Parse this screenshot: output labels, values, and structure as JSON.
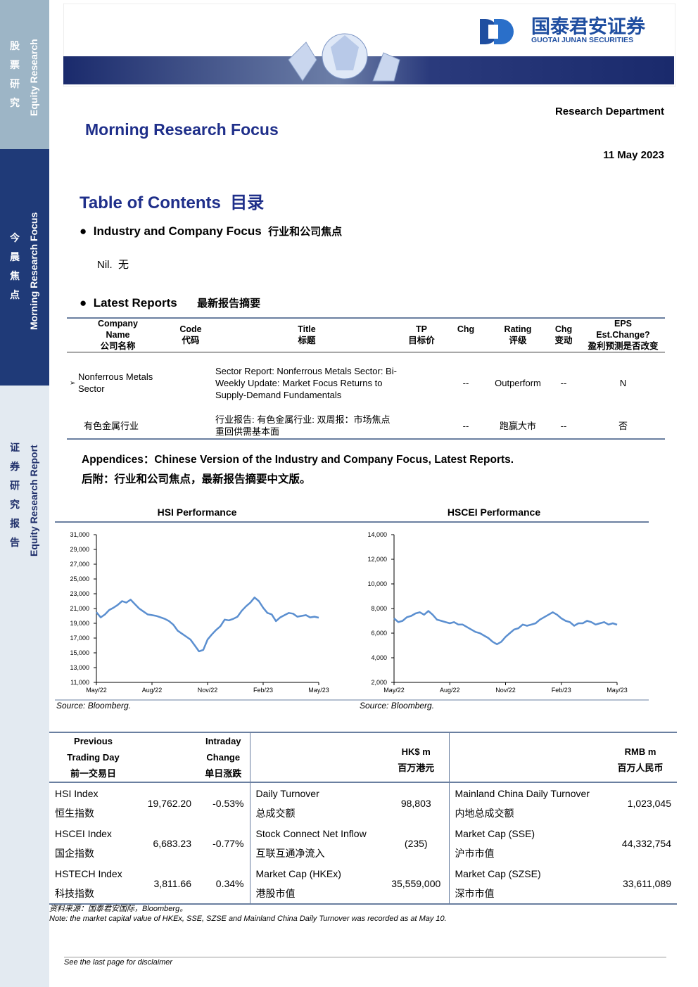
{
  "sidebar": {
    "top_cn": "股票研究",
    "top_en": "Equity Research",
    "mid_cn": "今晨焦点",
    "mid_en": "Morning Research Focus",
    "bot_cn": "证券研究报告",
    "bot_en": "Equity Research Report"
  },
  "header": {
    "logo_cn": "国泰君安证券",
    "logo_en": "GUOTAI JUNAN SECURITIES",
    "department": "Research Department",
    "title": "Morning Research Focus",
    "date": "11 May 2023"
  },
  "toc": {
    "title": "Table of Contents",
    "title_cn": "目录",
    "section1": {
      "title": "Industry and Company Focus",
      "title_cn": "行业和公司焦点",
      "body": "Nil.",
      "body_cn": "无"
    },
    "section2": {
      "title": "Latest Reports",
      "title_cn": "最新报告摘要"
    }
  },
  "reports_table": {
    "headers": {
      "company": {
        "en": "Company Name",
        "cn": "公司名称"
      },
      "code": {
        "en": "Code",
        "cn": "代码"
      },
      "title": {
        "en": "Title",
        "cn": "标题"
      },
      "tp": {
        "en": "TP",
        "cn": "目标价"
      },
      "chg": {
        "en": "Chg"
      },
      "rating": {
        "en": "Rating",
        "cn": "评级"
      },
      "rating_chg": {
        "en": "Chg",
        "cn": "变动"
      },
      "eps": {
        "en": "EPS Est.Change?",
        "cn": "盈利预测是否改变"
      }
    },
    "rows": [
      {
        "company": "Nonferrous Metals Sector",
        "title": "Sector Report: Nonferrous Metals Sector: Bi-Weekly Update: Market Focus Returns to Supply-Demand Fundamentals",
        "chg": "--",
        "rating": "Outperform",
        "rating_chg": "--",
        "eps": "N"
      },
      {
        "company": "有色金属行业",
        "title": "行业报告: 有色金属行业: 双周报：市场焦点重回供需基本面",
        "chg": "--",
        "rating": "跑赢大市",
        "rating_chg": "--",
        "eps": "否"
      }
    ]
  },
  "appendix": {
    "en": "Appendices：Chinese Version of the Industry and Company Focus, Latest Reports.",
    "cn": "后附：行业和公司焦点，最新报告摘要中文版。"
  },
  "chart_data": [
    {
      "type": "line",
      "title": "HSI Performance",
      "source": "Source: Bloomberg.",
      "color": "#5b8fd0",
      "categories": [
        "May/22",
        null,
        null,
        null,
        null,
        null,
        null,
        null,
        null,
        null,
        null,
        null,
        null,
        "Aug/22",
        null,
        null,
        null,
        null,
        null,
        null,
        null,
        null,
        null,
        null,
        null,
        null,
        "Nov/22",
        null,
        null,
        null,
        null,
        null,
        null,
        null,
        null,
        null,
        null,
        null,
        null,
        "Feb/23",
        null,
        null,
        null,
        null,
        null,
        null,
        null,
        null,
        null,
        null,
        null,
        null,
        "May/23"
      ],
      "values": [
        20500,
        19800,
        20200,
        20800,
        21100,
        21500,
        22000,
        21800,
        22200,
        21600,
        21000,
        20600,
        20200,
        20100,
        20000,
        19800,
        19600,
        19300,
        18800,
        18000,
        17600,
        17200,
        16800,
        16000,
        15200,
        15400,
        16800,
        17500,
        18100,
        18600,
        19500,
        19400,
        19600,
        19900,
        20700,
        21300,
        21800,
        22500,
        22000,
        21100,
        20400,
        20200,
        19300,
        19800,
        20100,
        20400,
        20300,
        19900,
        20000,
        20100,
        19800,
        19900,
        19760
      ],
      "ylim": [
        11000,
        31000
      ],
      "yticks": [
        {
          "value": 11000,
          "label": "11,000"
        },
        {
          "value": 13000,
          "label": "13,000"
        },
        {
          "value": 15000,
          "label": "15,000"
        },
        {
          "value": 17000,
          "label": "17,000"
        },
        {
          "value": 19000,
          "label": "19,000"
        },
        {
          "value": 21000,
          "label": "21,000"
        },
        {
          "value": 23000,
          "label": "23,000"
        },
        {
          "value": 25000,
          "label": "25,000"
        },
        {
          "value": 27000,
          "label": "27,000"
        },
        {
          "value": 29000,
          "label": "29,000"
        },
        {
          "value": 31000,
          "label": "31,000"
        }
      ]
    },
    {
      "type": "line",
      "title": "HSCEI Performance",
      "source": "Source: Bloomberg.",
      "color": "#5b8fd0",
      "categories": [
        "May/22",
        null,
        null,
        null,
        null,
        null,
        null,
        null,
        null,
        null,
        null,
        null,
        null,
        "Aug/22",
        null,
        null,
        null,
        null,
        null,
        null,
        null,
        null,
        null,
        null,
        null,
        null,
        "Nov/22",
        null,
        null,
        null,
        null,
        null,
        null,
        null,
        null,
        null,
        null,
        null,
        null,
        "Feb/23",
        null,
        null,
        null,
        null,
        null,
        null,
        null,
        null,
        null,
        null,
        null,
        null,
        "May/23"
      ],
      "values": [
        7200,
        6900,
        7000,
        7300,
        7400,
        7600,
        7700,
        7500,
        7800,
        7500,
        7100,
        7000,
        6900,
        6800,
        6900,
        6700,
        6700,
        6500,
        6300,
        6100,
        6000,
        5800,
        5600,
        5300,
        5100,
        5300,
        5700,
        6000,
        6300,
        6400,
        6700,
        6600,
        6700,
        6800,
        7100,
        7300,
        7500,
        7700,
        7500,
        7200,
        7000,
        6900,
        6600,
        6800,
        6800,
        7000,
        6900,
        6700,
        6800,
        6900,
        6700,
        6800,
        6683
      ],
      "ylim": [
        2000,
        14000
      ],
      "yticks": [
        {
          "value": 2000,
          "label": "2,000"
        },
        {
          "value": 4000,
          "label": "4,000"
        },
        {
          "value": 6000,
          "label": "6,000"
        },
        {
          "value": 8000,
          "label": "8,000"
        },
        {
          "value": 10000,
          "label": "10,000"
        },
        {
          "value": 12000,
          "label": "12,000"
        },
        {
          "value": 14000,
          "label": "14,000"
        }
      ]
    }
  ],
  "market_table": {
    "headers": {
      "prev": {
        "line1": "Previous",
        "line2": "Trading Day",
        "cn": "前一交易日"
      },
      "change": {
        "line1": "Intraday",
        "line2": "Change",
        "cn": "单日涨跌"
      },
      "hkd": {
        "en": "HK$ m",
        "cn": "百万港元"
      },
      "rmb": {
        "en": "RMB m",
        "cn": "百万人民币"
      }
    },
    "rows": [
      {
        "index_en": "HSI Index",
        "index_cn": "恒生指数",
        "close": "19,762.20",
        "change": "-0.53%",
        "hk_en": "Daily Turnover",
        "hk_cn": "总成交额",
        "hk_value": "98,803",
        "cn_en": "Mainland China Daily Turnover",
        "cn_cn": "内地总成交额",
        "cn_value": "1,023,045"
      },
      {
        "index_en": "HSCEI Index",
        "index_cn": "国企指数",
        "close": "6,683.23",
        "change": "-0.77%",
        "hk_en": "Stock Connect Net Inflow",
        "hk_cn": "互联互通净流入",
        "hk_value": "(235)",
        "cn_en": "Market Cap (SSE)",
        "cn_cn": "沪市市值",
        "cn_value": "44,332,754"
      },
      {
        "index_en": "HSTECH Index",
        "index_cn": "科技指数",
        "close": "3,811.66",
        "change": "0.34%",
        "hk_en": "Market Cap (HKEx)",
        "hk_cn": "港股市值",
        "hk_value": "35,559,000",
        "cn_en": "Market Cap (SZSE)",
        "cn_cn": "深市市值",
        "cn_value": "33,611,089"
      }
    ]
  },
  "footnotes": {
    "source": "资料来源：国泰君安国际，Bloomberg。",
    "note": "Note: the market capital value of HKEx, SSE, SZSE and Mainland China Daily Turnover was recorded as at May 10.",
    "disclaimer": "See the last page for disclaimer"
  }
}
